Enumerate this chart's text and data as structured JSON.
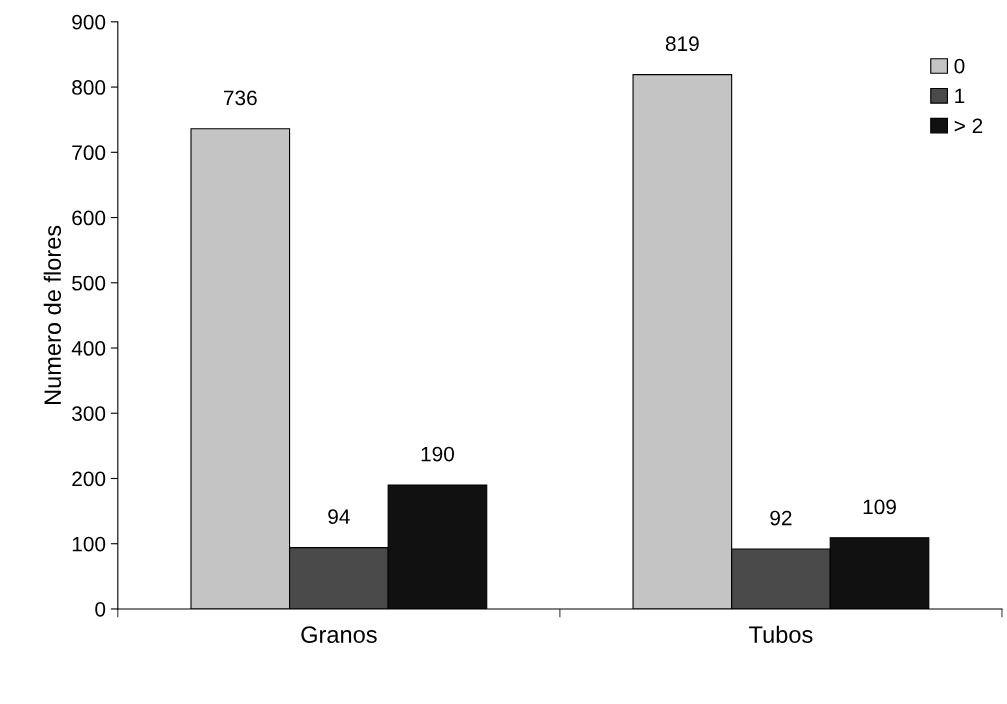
{
  "chart_data": {
    "type": "bar",
    "ylabel": "Numero de flores",
    "categories": [
      "Granos",
      "Tubos"
    ],
    "series": [
      {
        "name": "0",
        "color": "#c4c4c4",
        "values": [
          736,
          819
        ]
      },
      {
        "name": "1",
        "color": "#4a4a4a",
        "values": [
          94,
          92
        ]
      },
      {
        "name": "> 2",
        "color": "#111111",
        "values": [
          190,
          109
        ]
      }
    ],
    "ylim": [
      0,
      900
    ],
    "yticks": [
      0,
      100,
      200,
      300,
      400,
      500,
      600,
      700,
      800,
      900
    ],
    "data_labels": true,
    "grid": false,
    "legend": "top right"
  }
}
